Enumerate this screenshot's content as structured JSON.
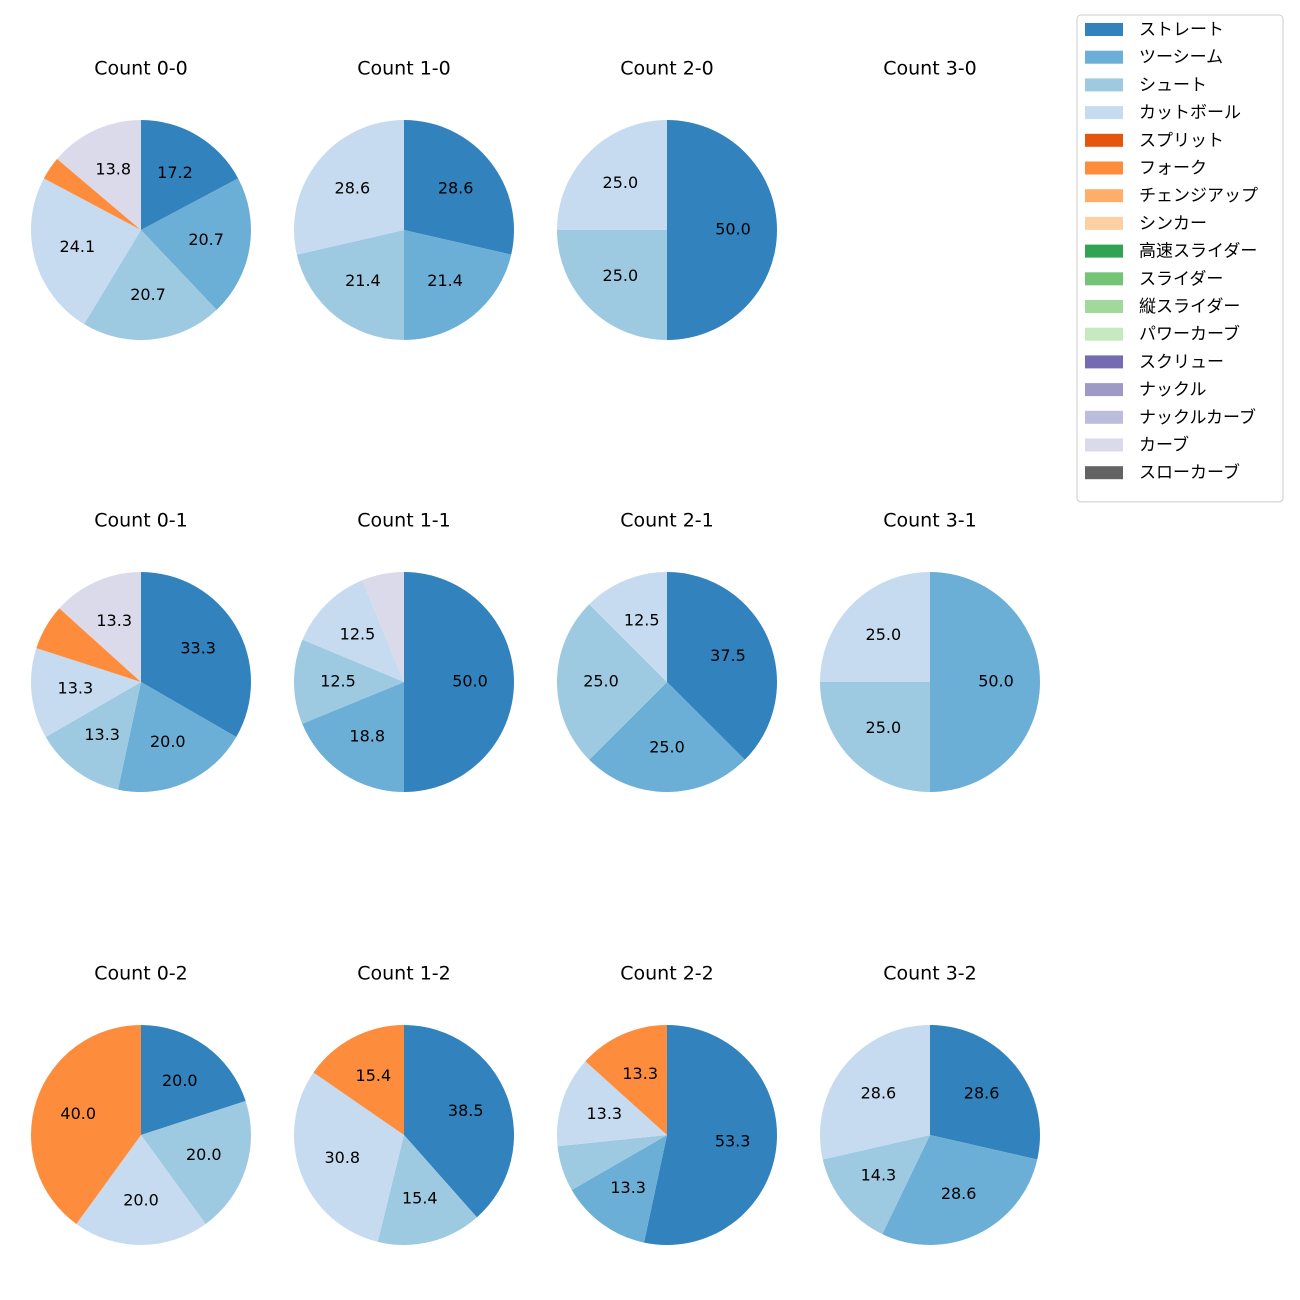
{
  "chart_data": {
    "type": "pie",
    "legend": {
      "placement": "top-right",
      "entries": [
        {
          "name": "ストレート",
          "color": "#3182bd"
        },
        {
          "name": "ツーシーム",
          "color": "#6baed6"
        },
        {
          "name": "シュート",
          "color": "#9ecae1"
        },
        {
          "name": "カットボール",
          "color": "#c6dbef"
        },
        {
          "name": "スプリット",
          "color": "#e6550d"
        },
        {
          "name": "フォーク",
          "color": "#fd8d3c"
        },
        {
          "name": "チェンジアップ",
          "color": "#fdae6b"
        },
        {
          "name": "シンカー",
          "color": "#fdd0a2"
        },
        {
          "name": "高速スライダー",
          "color": "#31a354"
        },
        {
          "name": "スライダー",
          "color": "#74c476"
        },
        {
          "name": "縦スライダー",
          "color": "#a1d99b"
        },
        {
          "name": "パワーカーブ",
          "color": "#c7e9c0"
        },
        {
          "name": "スクリュー",
          "color": "#756bb1"
        },
        {
          "name": "ナックル",
          "color": "#9e9ac8"
        },
        {
          "name": "ナックルカーブ",
          "color": "#bcbddc"
        },
        {
          "name": "カーブ",
          "color": "#dadaeb"
        },
        {
          "name": "スローカーブ",
          "color": "#636363"
        }
      ]
    },
    "charts": [
      {
        "title": "Count 0-0",
        "slices": [
          {
            "category": "ストレート",
            "value": 17.2,
            "label": "17.2"
          },
          {
            "category": "ツーシーム",
            "value": 20.7,
            "label": "20.7"
          },
          {
            "category": "シュート",
            "value": 20.7,
            "label": "20.7"
          },
          {
            "category": "カットボール",
            "value": 24.1,
            "label": "24.1"
          },
          {
            "category": "フォーク",
            "value": 3.4,
            "label": ""
          },
          {
            "category": "カーブ",
            "value": 13.8,
            "label": "13.8"
          }
        ]
      },
      {
        "title": "Count 1-0",
        "slices": [
          {
            "category": "ストレート",
            "value": 28.6,
            "label": "28.6"
          },
          {
            "category": "ツーシーム",
            "value": 21.4,
            "label": "21.4"
          },
          {
            "category": "シュート",
            "value": 21.4,
            "label": "21.4"
          },
          {
            "category": "カットボール",
            "value": 28.6,
            "label": "28.6"
          }
        ]
      },
      {
        "title": "Count 2-0",
        "slices": [
          {
            "category": "ストレート",
            "value": 50.0,
            "label": "50.0"
          },
          {
            "category": "シュート",
            "value": 25.0,
            "label": "25.0"
          },
          {
            "category": "カットボール",
            "value": 25.0,
            "label": "25.0"
          }
        ]
      },
      {
        "title": "Count 3-0",
        "slices": []
      },
      {
        "title": "Count 0-1",
        "slices": [
          {
            "category": "ストレート",
            "value": 33.3,
            "label": "33.3"
          },
          {
            "category": "ツーシーム",
            "value": 20.0,
            "label": "20.0"
          },
          {
            "category": "シュート",
            "value": 13.3,
            "label": "13.3"
          },
          {
            "category": "カットボール",
            "value": 13.3,
            "label": "13.3"
          },
          {
            "category": "フォーク",
            "value": 6.7,
            "label": ""
          },
          {
            "category": "カーブ",
            "value": 13.3,
            "label": "13.3"
          }
        ]
      },
      {
        "title": "Count 1-1",
        "slices": [
          {
            "category": "ストレート",
            "value": 50.0,
            "label": "50.0"
          },
          {
            "category": "ツーシーム",
            "value": 18.8,
            "label": "18.8"
          },
          {
            "category": "シュート",
            "value": 12.5,
            "label": "12.5"
          },
          {
            "category": "カットボール",
            "value": 12.5,
            "label": "12.5"
          },
          {
            "category": "カーブ",
            "value": 6.2,
            "label": ""
          }
        ]
      },
      {
        "title": "Count 2-1",
        "slices": [
          {
            "category": "ストレート",
            "value": 37.5,
            "label": "37.5"
          },
          {
            "category": "ツーシーム",
            "value": 25.0,
            "label": "25.0"
          },
          {
            "category": "シュート",
            "value": 25.0,
            "label": "25.0"
          },
          {
            "category": "カットボール",
            "value": 12.5,
            "label": "12.5"
          }
        ]
      },
      {
        "title": "Count 3-1",
        "slices": [
          {
            "category": "ツーシーム",
            "value": 50.0,
            "label": "50.0"
          },
          {
            "category": "シュート",
            "value": 25.0,
            "label": "25.0"
          },
          {
            "category": "カットボール",
            "value": 25.0,
            "label": "25.0"
          }
        ]
      },
      {
        "title": "Count 0-2",
        "slices": [
          {
            "category": "ストレート",
            "value": 20.0,
            "label": "20.0"
          },
          {
            "category": "シュート",
            "value": 20.0,
            "label": "20.0"
          },
          {
            "category": "カットボール",
            "value": 20.0,
            "label": "20.0"
          },
          {
            "category": "フォーク",
            "value": 40.0,
            "label": "40.0"
          }
        ]
      },
      {
        "title": "Count 1-2",
        "slices": [
          {
            "category": "ストレート",
            "value": 38.5,
            "label": "38.5"
          },
          {
            "category": "シュート",
            "value": 15.4,
            "label": "15.4"
          },
          {
            "category": "カットボール",
            "value": 30.8,
            "label": "30.8"
          },
          {
            "category": "フォーク",
            "value": 15.4,
            "label": "15.4"
          }
        ]
      },
      {
        "title": "Count 2-2",
        "slices": [
          {
            "category": "ストレート",
            "value": 53.3,
            "label": "53.3"
          },
          {
            "category": "ツーシーム",
            "value": 13.3,
            "label": "13.3"
          },
          {
            "category": "シュート",
            "value": 6.7,
            "label": ""
          },
          {
            "category": "カットボール",
            "value": 13.3,
            "label": "13.3"
          },
          {
            "category": "フォーク",
            "value": 13.3,
            "label": "13.3"
          }
        ]
      },
      {
        "title": "Count 3-2",
        "slices": [
          {
            "category": "ストレート",
            "value": 28.6,
            "label": "28.6"
          },
          {
            "category": "ツーシーム",
            "value": 28.6,
            "label": "28.6"
          },
          {
            "category": "シュート",
            "value": 14.3,
            "label": "14.3"
          },
          {
            "category": "カットボール",
            "value": 28.6,
            "label": "28.6"
          }
        ]
      }
    ]
  }
}
